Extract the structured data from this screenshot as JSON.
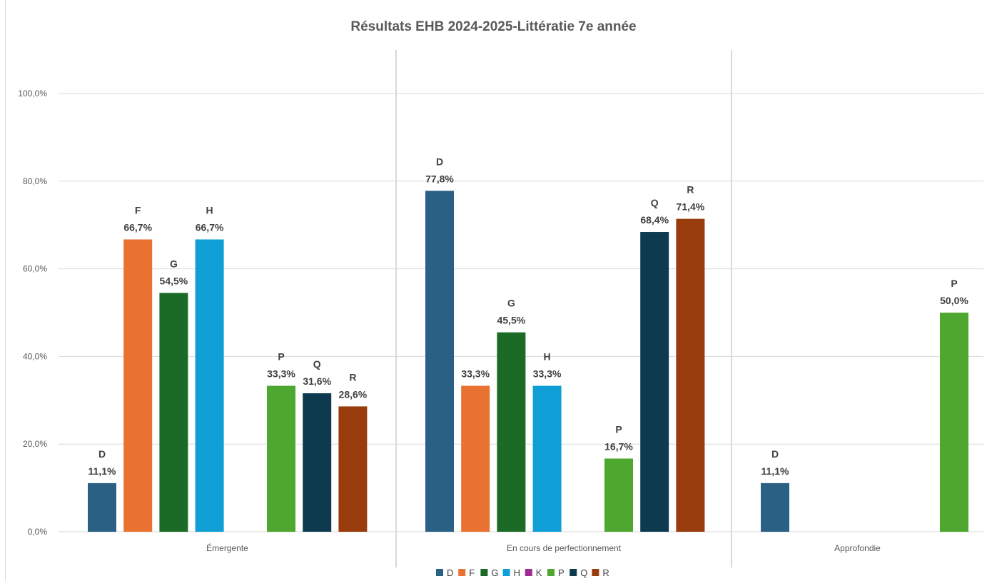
{
  "chart_data": {
    "type": "bar",
    "title": "Résultats EHB 2024-2025-Littératie 7e année",
    "xlabel": "",
    "ylabel": "",
    "ylim": [
      0,
      100
    ],
    "y_ticks": [
      0,
      20,
      40,
      60,
      80,
      100
    ],
    "y_tick_labels": [
      "0,0%",
      "20,0%",
      "40,0%",
      "60,0%",
      "80,0%",
      "100,0%"
    ],
    "grid": true,
    "legend_position": "bottom",
    "categories": [
      "Émergente",
      "En cours de perfectionnement",
      "Approfondie"
    ],
    "series": [
      {
        "name": "D",
        "color": "#2a6083",
        "values": [
          11.1,
          77.8,
          11.1
        ],
        "labels": [
          "11,1%",
          "77,8%",
          "11,1%"
        ]
      },
      {
        "name": "F",
        "color": "#e97232",
        "values": [
          66.7,
          33.3,
          null
        ],
        "labels": [
          "66,7%",
          "33,3%",
          ""
        ]
      },
      {
        "name": "G",
        "color": "#1b6b26",
        "values": [
          54.5,
          45.5,
          null
        ],
        "labels": [
          "54,5%",
          "45,5%",
          ""
        ]
      },
      {
        "name": "H",
        "color": "#0f9ed6",
        "values": [
          66.7,
          33.3,
          null
        ],
        "labels": [
          "66,7%",
          "33,3%",
          ""
        ]
      },
      {
        "name": "K",
        "color": "#a02b93",
        "values": [
          null,
          null,
          null
        ],
        "labels": [
          "",
          "",
          ""
        ]
      },
      {
        "name": "P",
        "color": "#4ea72e",
        "values": [
          33.3,
          16.7,
          50.0
        ],
        "labels": [
          "33,3%",
          "16,7%",
          "50,0%"
        ]
      },
      {
        "name": "Q",
        "color": "#0e3a50",
        "values": [
          31.6,
          68.4,
          null
        ],
        "labels": [
          "31,6%",
          "68,4%",
          ""
        ]
      },
      {
        "name": "R",
        "color": "#983c0e",
        "values": [
          28.6,
          71.4,
          null
        ],
        "labels": [
          "28,6%",
          "71,4%",
          ""
        ]
      }
    ],
    "series_name_shown_above_bar": [
      [
        true,
        true,
        true
      ],
      [
        true,
        false,
        false
      ],
      [
        true,
        true,
        false
      ],
      [
        true,
        true,
        false
      ],
      [
        false,
        false,
        false
      ],
      [
        true,
        true,
        true
      ],
      [
        true,
        true,
        false
      ],
      [
        true,
        true,
        false
      ]
    ]
  }
}
